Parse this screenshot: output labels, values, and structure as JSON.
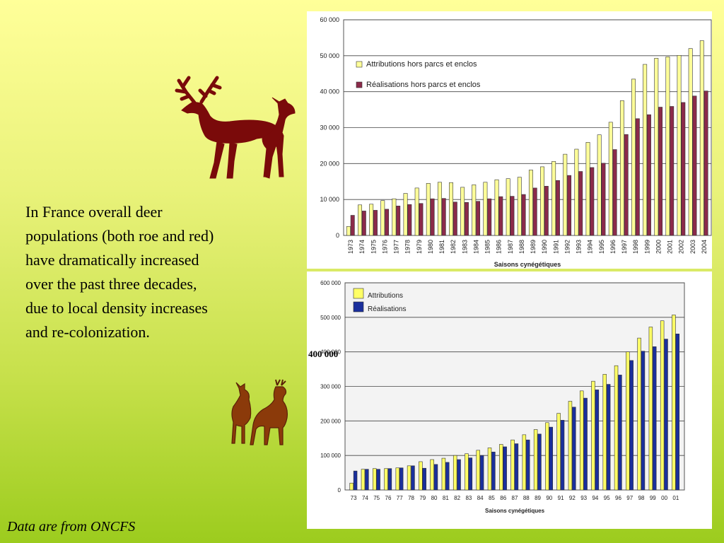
{
  "slide": {
    "body_text": "In France overall deer populations (both roe and red) have dramatically increased over the past three decades, due to local density increases and re-colonization.",
    "source_note": "Data are from ONCFS",
    "callout": "400 000"
  },
  "colors": {
    "attribution_red_chart": "#ffff99",
    "realisation_red_chart": "#8b2a4a",
    "attribution_roe_chart": "#ffff66",
    "realisation_roe_chart": "#1a2f9c",
    "red_deer_icon": "#7a0a0a",
    "roe_deer_icon": "#8b3a0a"
  },
  "icons": [
    "red-deer-silhouette-icon",
    "roe-deer-silhouette-icon"
  ],
  "chart_data": [
    {
      "type": "bar",
      "xlabel": "Saisons cynégétiques",
      "ylabel": "",
      "ylim": [
        0,
        60000
      ],
      "yticks": [
        "0",
        "10 000",
        "20 000",
        "30 000",
        "40 000",
        "50 000",
        "60 000"
      ],
      "grid": true,
      "legend": "top-left",
      "categories": [
        "1973",
        "1974",
        "1975",
        "1976",
        "1977",
        "1978",
        "1979",
        "1980",
        "1981",
        "1982",
        "1983",
        "1984",
        "1985",
        "1986",
        "1987",
        "1988",
        "1989",
        "1990",
        "1991",
        "1992",
        "1993",
        "1994",
        "1995",
        "1996",
        "1997",
        "1998",
        "1999",
        "2000",
        "2001",
        "2002",
        "2003",
        "2004"
      ],
      "series": [
        {
          "name": "Attributions hors parcs et enclos",
          "values": [
            2500,
            8500,
            8700,
            9700,
            10200,
            11700,
            13200,
            14500,
            14800,
            14700,
            13400,
            14100,
            14800,
            15500,
            15800,
            16200,
            18200,
            19100,
            20600,
            22600,
            24000,
            25900,
            28000,
            31500,
            37500,
            43500,
            47600,
            49300,
            49700,
            50100,
            52000,
            54200
          ]
        },
        {
          "name": "Réalisations hors parcs et enclos",
          "values": [
            5600,
            6800,
            7000,
            7300,
            8200,
            8600,
            8900,
            10200,
            10300,
            9300,
            9200,
            9500,
            10200,
            10800,
            10900,
            11400,
            13200,
            13700,
            15300,
            16700,
            17800,
            18900,
            20100,
            23900,
            28100,
            32500,
            33600,
            35700,
            35900,
            37000,
            38800,
            40200
          ]
        }
      ]
    },
    {
      "type": "bar",
      "xlabel": "Saisons cynégétiques",
      "ylabel": "",
      "ylim": [
        0,
        600000
      ],
      "yticks": [
        "0",
        "100 000",
        "200 000",
        "300 000",
        "400 000",
        "500 000",
        "600 000"
      ],
      "grid": true,
      "legend": "top-left",
      "categories": [
        "73",
        "74",
        "75",
        "76",
        "77",
        "78",
        "79",
        "80",
        "81",
        "82",
        "83",
        "84",
        "85",
        "86",
        "87",
        "88",
        "89",
        "90",
        "91",
        "92",
        "93",
        "94",
        "95",
        "96",
        "97",
        "98",
        "99",
        "00",
        "01"
      ],
      "series": [
        {
          "name": "Attributions",
          "values": [
            20000,
            60000,
            62000,
            62000,
            64000,
            70000,
            82000,
            88000,
            92000,
            100000,
            105000,
            115000,
            122000,
            132000,
            145000,
            160000,
            175000,
            195000,
            222000,
            257000,
            287000,
            315000,
            335000,
            360000,
            400000,
            440000,
            472000,
            490000,
            507000
          ]
        },
        {
          "name": "Réalisations",
          "values": [
            55000,
            60000,
            60000,
            62000,
            64000,
            70000,
            63000,
            74000,
            80000,
            88000,
            93000,
            100000,
            110000,
            125000,
            134000,
            145000,
            162000,
            182000,
            202000,
            240000,
            266000,
            290000,
            306000,
            333000,
            375000,
            402000,
            415000,
            437000,
            452000
          ]
        }
      ]
    }
  ]
}
